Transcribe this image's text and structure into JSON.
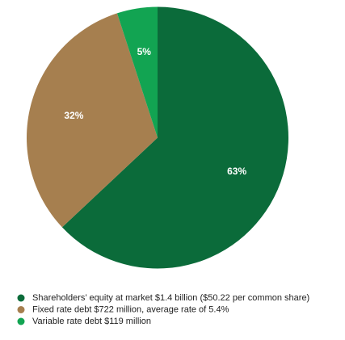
{
  "chart_data": {
    "type": "pie",
    "categories": [
      "Shareholders’ equity at market $1.4 billion ($50.22 per common share)",
      "Fixed rate debt $722 million, average rate of 5.4%",
      "Variable rate debt $119 million"
    ],
    "values": [
      63,
      32,
      5
    ],
    "value_labels": [
      "63%",
      "32%",
      "5%"
    ],
    "colors": [
      "#0b6b3a",
      "#a67f4f",
      "#12a452"
    ]
  }
}
